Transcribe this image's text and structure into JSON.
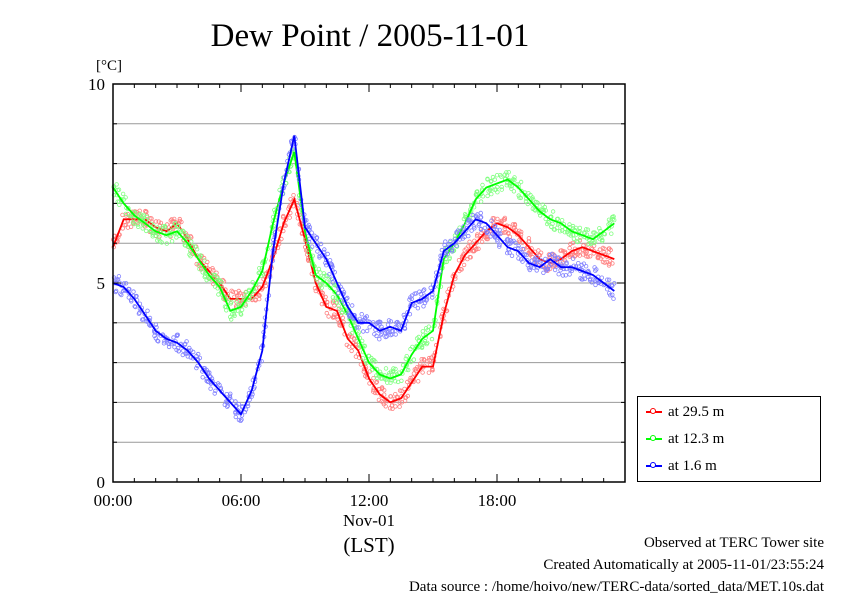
{
  "chart_data": {
    "type": "line",
    "title": "Dew Point / 2005-11-01",
    "ylabel": "[°C]",
    "xlabel": "(LST)",
    "date_label": "Nov-01",
    "xlim": [
      0,
      24
    ],
    "ylim": [
      0,
      10
    ],
    "x_ticks": [
      0,
      6,
      12,
      18
    ],
    "x_tick_labels": [
      "00:00",
      "06:00",
      "12:00",
      "18:00"
    ],
    "y_ticks": [
      0,
      5,
      10
    ],
    "y_tick_labels": [
      "0",
      "5",
      "10"
    ],
    "grid": "horizontal",
    "legend": "right-bottom",
    "x_unit": "hours",
    "x": [
      0,
      0.5,
      1,
      1.5,
      2,
      2.5,
      3,
      3.5,
      4,
      4.5,
      5,
      5.5,
      6,
      6.5,
      7,
      7.5,
      8,
      8.5,
      9,
      9.5,
      10,
      10.5,
      11,
      11.5,
      12,
      12.5,
      13,
      13.5,
      14,
      14.5,
      15,
      15.5,
      16,
      16.5,
      17,
      17.5,
      18,
      18.5,
      19,
      19.5,
      20,
      20.5,
      21,
      21.5,
      22,
      22.5,
      23,
      23.5
    ],
    "series": [
      {
        "name": "at 29.5 m",
        "color": "#ff0000",
        "values": [
          5.9,
          6.6,
          6.6,
          6.6,
          6.4,
          6.3,
          6.5,
          6.1,
          5.6,
          5.3,
          5.0,
          4.6,
          4.6,
          4.6,
          4.9,
          5.6,
          6.5,
          7.1,
          6.1,
          5.0,
          4.4,
          4.3,
          3.6,
          3.3,
          2.6,
          2.2,
          2.0,
          2.1,
          2.5,
          2.9,
          2.9,
          4.2,
          5.2,
          5.7,
          6.0,
          6.3,
          6.5,
          6.4,
          6.2,
          5.9,
          5.6,
          5.5,
          5.6,
          5.8,
          5.9,
          5.8,
          5.7,
          5.6
        ]
      },
      {
        "name": "at 12.3 m",
        "color": "#00ff00",
        "values": [
          7.4,
          7.0,
          6.7,
          6.5,
          6.3,
          6.2,
          6.3,
          6.0,
          5.6,
          5.2,
          4.9,
          4.3,
          4.4,
          4.8,
          5.3,
          6.5,
          7.5,
          8.3,
          6.3,
          5.2,
          5.0,
          4.7,
          4.2,
          3.6,
          3.0,
          2.7,
          2.6,
          2.7,
          3.2,
          3.6,
          3.8,
          5.6,
          6.0,
          6.5,
          7.1,
          7.4,
          7.5,
          7.6,
          7.4,
          7.1,
          6.8,
          6.6,
          6.5,
          6.3,
          6.2,
          6.1,
          6.3,
          6.5
        ]
      },
      {
        "name": "at 1.6 m",
        "color": "#0000ff",
        "values": [
          5.0,
          4.9,
          4.6,
          4.2,
          3.8,
          3.6,
          3.5,
          3.3,
          3.0,
          2.6,
          2.3,
          2.0,
          1.7,
          2.3,
          3.3,
          5.8,
          7.5,
          8.7,
          6.4,
          6.0,
          5.6,
          5.0,
          4.4,
          4.0,
          4.0,
          3.8,
          3.9,
          3.8,
          4.5,
          4.6,
          4.8,
          5.8,
          6.0,
          6.3,
          6.6,
          6.5,
          6.2,
          5.9,
          5.8,
          5.5,
          5.4,
          5.6,
          5.4,
          5.4,
          5.3,
          5.2,
          5.0,
          4.8
        ]
      }
    ]
  },
  "footer": {
    "site": "Observed at TERC Tower site",
    "created": "Created Automatically at 2005-11-01/23:55:24",
    "source": "Data source : /home/hoivo/new/TERC-data/sorted_data/MET.10s.dat"
  }
}
